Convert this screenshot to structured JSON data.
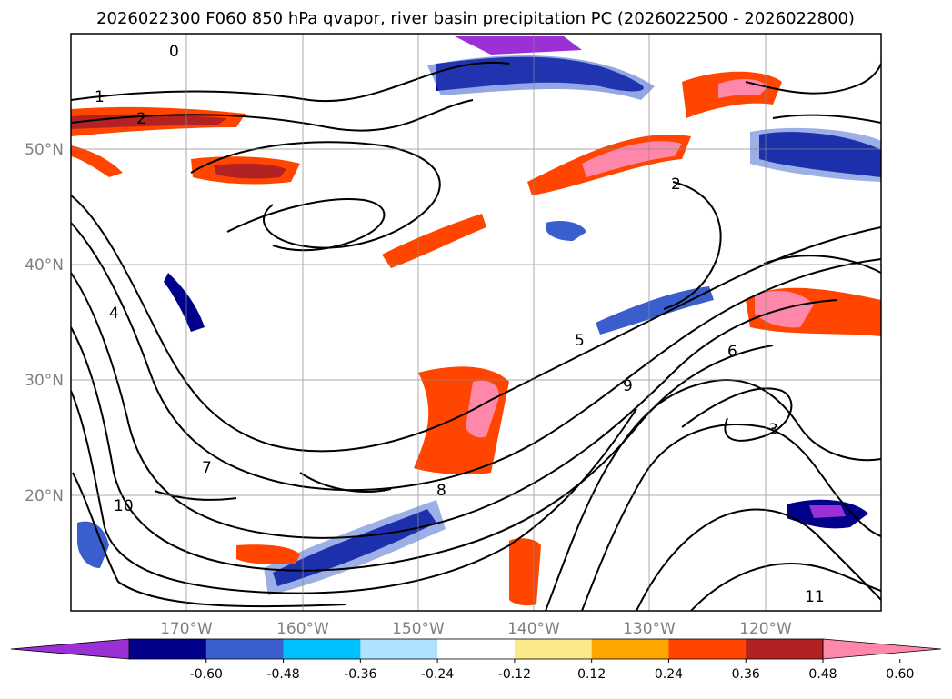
{
  "title": "2026022300 F060 850 hPa qvapor, river basin precipitation PC (2026022500 - 2026022800)",
  "map": {
    "lon_labels": [
      "170°W",
      "160°W",
      "150°W",
      "140°W",
      "130°W",
      "120°W"
    ],
    "lat_labels": [
      "50°N",
      "40°N",
      "30°N",
      "20°N"
    ],
    "lon_range": [
      -180,
      -110
    ],
    "lat_range": [
      10,
      60
    ],
    "contour_labels": [
      "0",
      "1",
      "2",
      "2",
      "3",
      "4",
      "5",
      "6",
      "7",
      "8",
      "9",
      "10",
      "11"
    ],
    "label_color": "#808080"
  },
  "colorbar": {
    "tick_labels": [
      "-0.60",
      "-0.48",
      "-0.36",
      "-0.24",
      "-0.12",
      "0.12",
      "0.24",
      "0.36",
      "0.48",
      "0.60"
    ],
    "colors": [
      "#9b30d6",
      "#00008b",
      "#3a5fcd",
      "#00bfff",
      "#b0e2ff",
      "#ffffff",
      "#fde98a",
      "#ffa500",
      "#ff4500",
      "#b22222",
      "#ff88aa"
    ]
  }
}
